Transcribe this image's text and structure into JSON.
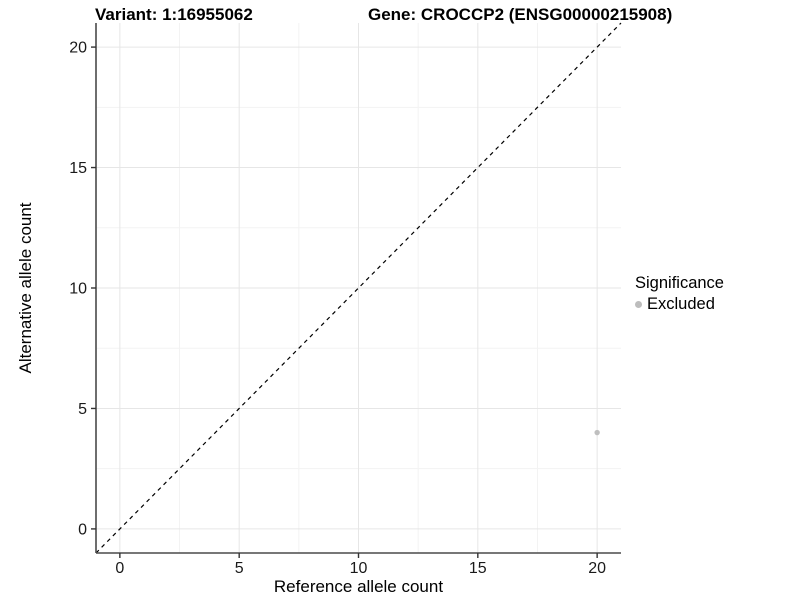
{
  "chart_data": {
    "type": "scatter",
    "title_left": "Variant: 1:16955062",
    "title_right": "Gene: CROCCP2 (ENSG00000215908)",
    "xlabel": "Reference allele count",
    "ylabel": "Alternative allele count",
    "xlim": [
      -1,
      21
    ],
    "ylim": [
      -1,
      21
    ],
    "xticks": [
      0,
      5,
      10,
      15,
      20
    ],
    "yticks": [
      0,
      5,
      10,
      15,
      20
    ],
    "x_minor_ticks": [
      2.5,
      7.5,
      12.5,
      17.5
    ],
    "y_minor_ticks": [
      2.5,
      7.5,
      12.5,
      17.5
    ],
    "grid": "major+minor",
    "legend_position": "right",
    "legend": {
      "title": "Significance",
      "items": [
        {
          "label": "Excluded",
          "color": "#bdbdbd",
          "marker": "circle-icon"
        }
      ]
    },
    "series": [
      {
        "name": "Excluded",
        "color": "#bfbfbf",
        "points": [
          {
            "x": 20,
            "y": 4
          }
        ]
      }
    ],
    "reference_line": {
      "kind": "identity y=x",
      "style": "dashed",
      "color": "#000000",
      "x0": -1,
      "y0": -1,
      "x1": 21,
      "y1": 21
    },
    "colors": {
      "background": "#ffffff",
      "grid_major": "#e6e6e6",
      "grid_minor": "#f3f3f3",
      "axis_line": "#4a4a4a",
      "tick_mark": "#333333",
      "tick_text": "#1a1a1a",
      "axis_title_text": "#000000"
    }
  }
}
